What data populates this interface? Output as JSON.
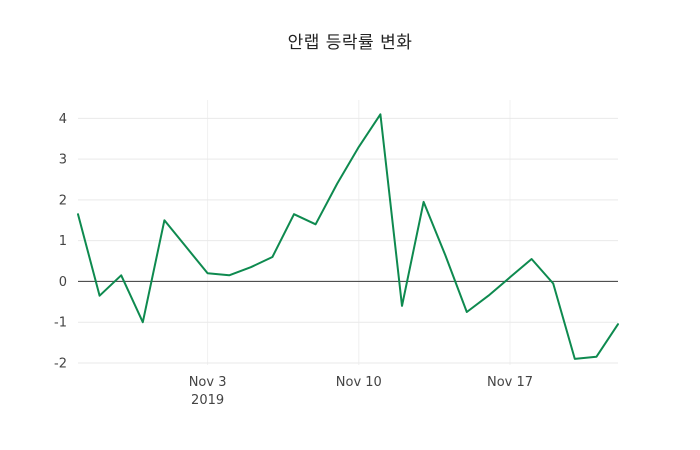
{
  "chart_data": {
    "type": "line",
    "title": "안랩 등락률 변화",
    "ylabel": "",
    "xlabel": "",
    "values": [
      1.65,
      -0.35,
      0.15,
      -1.0,
      1.5,
      0.85,
      0.2,
      0.15,
      0.35,
      0.6,
      1.65,
      1.4,
      2.4,
      3.3,
      4.1,
      -0.6,
      1.95,
      0.65,
      -0.75,
      -0.35,
      0.1,
      0.55,
      -0.05,
      -1.9,
      -1.85,
      -1.05
    ],
    "yticks": [
      4,
      3,
      2,
      1,
      0,
      -1,
      -2
    ],
    "ylim": [
      -2.05,
      4.45
    ],
    "xticks": [
      {
        "label": "Nov 3",
        "sublabel": "2019",
        "index": 6
      },
      {
        "label": "Nov 10",
        "sublabel": "",
        "index": 13
      },
      {
        "label": "Nov 17",
        "sublabel": "",
        "index": 20
      }
    ],
    "legend": "none",
    "grid": "horizontal",
    "line_color": "#0e8a4f",
    "grid_color": "#e9e9e9",
    "vgrid_color": "#f0f0f0",
    "zero_line_color": "#3a3a3a",
    "text_color": "#444444",
    "background": "#ffffff"
  }
}
